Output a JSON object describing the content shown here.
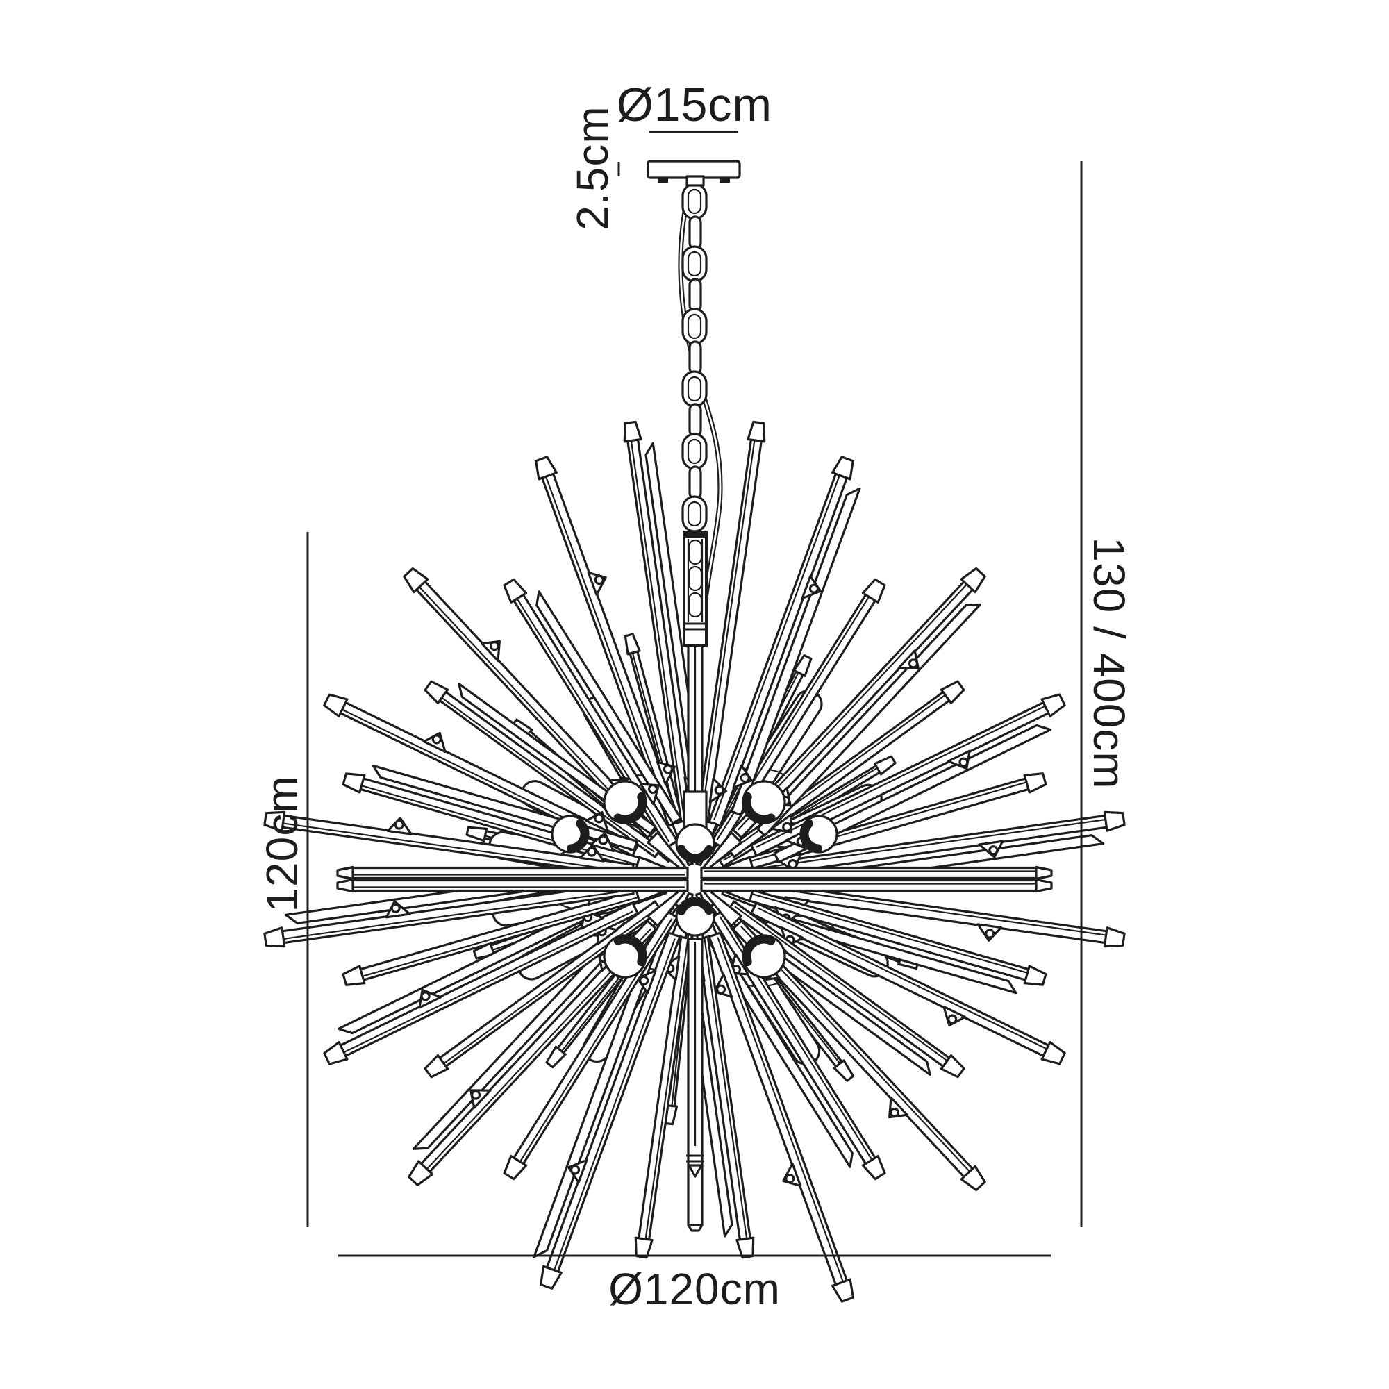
{
  "page": {
    "background": "#ffffff"
  },
  "drawing": {
    "type": "technical-dimension-diagram",
    "subject": "sputnik starburst glass-rod pendant chandelier, front elevation",
    "line_color": "#1d1d1b",
    "text_color": "#1d1d1b"
  },
  "labels": {
    "canopy_diameter": "Ø15cm",
    "canopy_height": "2.5cm",
    "drop_height": "130 / 400cm",
    "body_height": "120cm",
    "body_diameter": "Ø120cm"
  },
  "figure": {
    "chain_link_count": 11,
    "glass_rod_count": 32,
    "short_rod_count": 10,
    "candle_tube_count": 10,
    "lamp_holder_count": 6
  }
}
